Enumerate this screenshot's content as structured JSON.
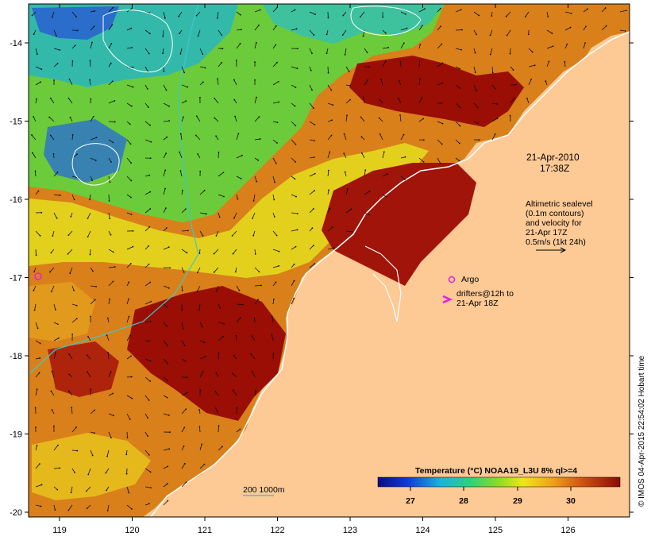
{
  "map": {
    "date_label": "21-Apr-2010",
    "time_label": "17:38Z",
    "x_ticks": [
      "119",
      "120",
      "121",
      "122",
      "123",
      "124",
      "125",
      "126"
    ],
    "y_ticks": [
      "-14",
      "-15",
      "-16",
      "-17",
      "-18",
      "-19",
      "-20"
    ],
    "altimetry_lines": [
      "Altimetric sealevel",
      "(0.1m contours)",
      "and velocity for",
      "21-Apr 17Z",
      "0.5m/s (1kt 24h)"
    ],
    "argo_label": "Argo",
    "drifters_lines": [
      "drifters@12h to",
      "21-Apr 18Z"
    ],
    "isobath_label": "200  1000m",
    "credit": "© IMOS 04-Apr-2015 22:54:02 Hobart time"
  },
  "colorbar": {
    "title": "Temperature (°C) NOAA19_L3U 8% ql>=4",
    "ticks": [
      "27",
      "28",
      "29",
      "30"
    ]
  },
  "colors": {
    "land": "#fdc995",
    "sst_hot": "#9a0e05",
    "sst_warm": "#cf6a12",
    "sst_mid": "#e89a1a",
    "sst_yellow": "#e6e21a",
    "sst_green": "#3fcf2a",
    "sst_cyan": "#24b3c3",
    "sst_blue": "#1f4fc8",
    "argo": "#e81ee0",
    "isobath": "#3ac9c9"
  }
}
